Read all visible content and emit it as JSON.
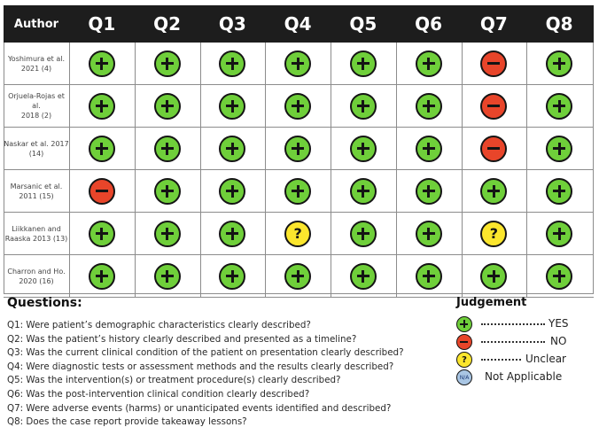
{
  "table": {
    "author_header": "Author",
    "question_headers": [
      "Q1",
      "Q2",
      "Q3",
      "Q4",
      "Q5",
      "Q6",
      "Q7",
      "Q8"
    ],
    "rows": [
      {
        "author": "Yoshimura et al.\n2021 (4)",
        "ratings": [
          "yes",
          "yes",
          "yes",
          "yes",
          "yes",
          "yes",
          "no",
          "yes"
        ]
      },
      {
        "author": "Orjuela-Rojas et al.\n2018 (2)",
        "ratings": [
          "yes",
          "yes",
          "yes",
          "yes",
          "yes",
          "yes",
          "no",
          "yes"
        ]
      },
      {
        "author": "Naskar et al. 2017\n(14)",
        "ratings": [
          "yes",
          "yes",
          "yes",
          "yes",
          "yes",
          "yes",
          "no",
          "yes"
        ]
      },
      {
        "author": "Marsanic et al.\n2011 (15)",
        "ratings": [
          "no",
          "yes",
          "yes",
          "yes",
          "yes",
          "yes",
          "yes",
          "yes"
        ]
      },
      {
        "author": "Liikkanen and\nRaaska 2013 (13)",
        "ratings": [
          "yes",
          "yes",
          "yes",
          "unclear",
          "yes",
          "yes",
          "unclear",
          "yes"
        ]
      },
      {
        "author": "Charron and Ho.\n2020 (16)",
        "ratings": [
          "yes",
          "yes",
          "yes",
          "yes",
          "yes",
          "yes",
          "yes",
          "yes"
        ]
      }
    ]
  },
  "symbols": {
    "yes": {
      "icon": "plus-icon",
      "color": "#6fcf3a",
      "glyph": ""
    },
    "no": {
      "icon": "minus-icon",
      "color": "#e8452a",
      "glyph": ""
    },
    "unclear": {
      "icon": "question-icon",
      "color": "#fbe62d",
      "glyph": "?"
    },
    "na": {
      "icon": "na-icon",
      "color": "#a9c6e4",
      "glyph": "N/A"
    }
  },
  "questions": {
    "title": "Questions:",
    "items": [
      "Q1: Were patient’s demographic characteristics clearly described?",
      "Q2: Was the patient’s history clearly described and presented as a timeline?",
      "Q3: Was the current clinical condition of the patient on presentation clearly described?",
      "Q4: Were diagnostic tests or assessment methods and the results clearly described?",
      "Q5: Was the intervention(s) or treatment procedure(s) clearly described?",
      "Q6: Was the post-intervention clinical condition clearly described?",
      "Q7: Were adverse events (harms) or unanticipated events identified and described?",
      "Q8: Does the case report provide takeaway lessons?"
    ]
  },
  "legend": {
    "title": "Judgement",
    "items": [
      {
        "key": "yes",
        "label": "YES"
      },
      {
        "key": "no",
        "label": "NO"
      },
      {
        "key": "unclear",
        "label": "Unclear"
      },
      {
        "key": "na",
        "label": "Not Applicable"
      }
    ]
  }
}
